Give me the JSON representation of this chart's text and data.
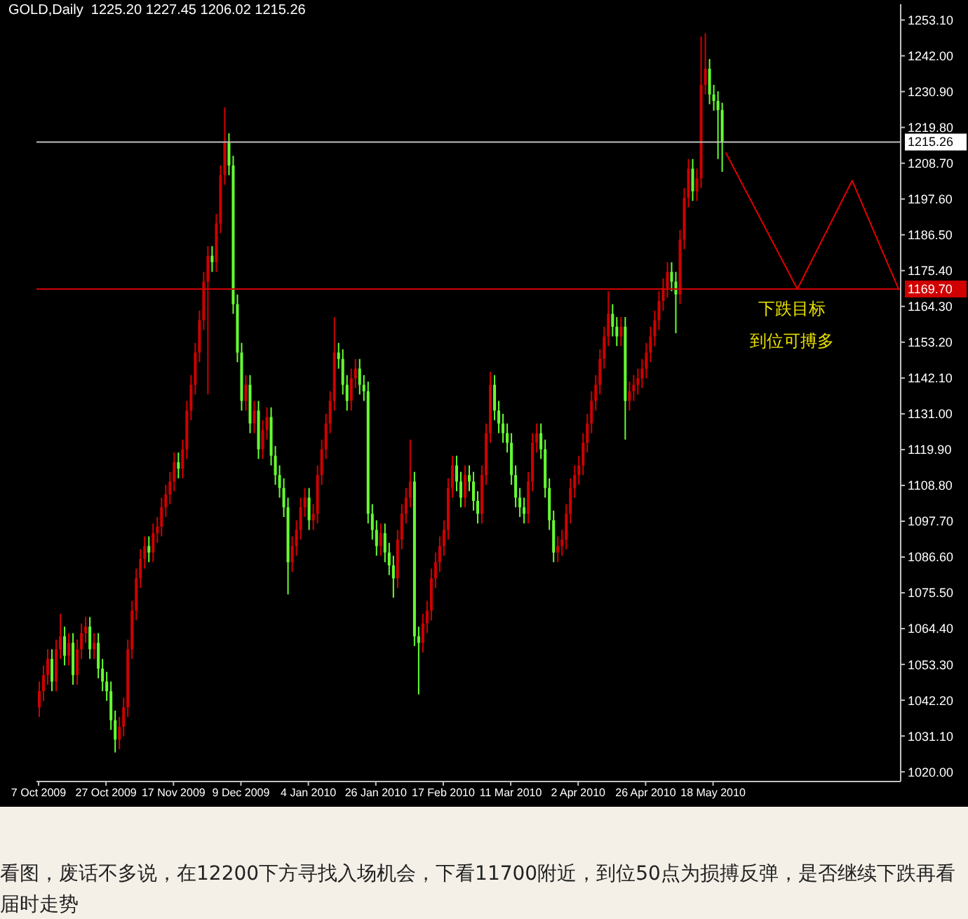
{
  "chart_data": {
    "type": "candlestick",
    "title": "GOLD,Daily  1225.20 1227.45 1206.02 1215.26",
    "categories": [
      "7 Oct 2009",
      null,
      null,
      null,
      null,
      null,
      null,
      null,
      null,
      null,
      null,
      null,
      null,
      null,
      null,
      null,
      "27 Oct 2009",
      null,
      null,
      null,
      null,
      null,
      null,
      null,
      null,
      null,
      null,
      null,
      null,
      null,
      null,
      null,
      "17 Nov 2009",
      null,
      null,
      null,
      null,
      null,
      null,
      null,
      null,
      null,
      null,
      null,
      null,
      null,
      null,
      null,
      "9 Dec 2009",
      null,
      null,
      null,
      null,
      null,
      null,
      null,
      null,
      null,
      null,
      null,
      null,
      null,
      null,
      null,
      "4 Jan 2010",
      null,
      null,
      null,
      null,
      null,
      null,
      null,
      null,
      null,
      null,
      null,
      null,
      null,
      null,
      null,
      "26 Jan 2010",
      null,
      null,
      null,
      null,
      null,
      null,
      null,
      null,
      null,
      null,
      null,
      null,
      null,
      null,
      null,
      "17 Feb 2010",
      null,
      null,
      null,
      null,
      null,
      null,
      null,
      null,
      null,
      null,
      null,
      null,
      null,
      null,
      null,
      "11 Mar 2010",
      null,
      null,
      null,
      null,
      null,
      null,
      null,
      null,
      null,
      null,
      null,
      null,
      null,
      null,
      null,
      "2 Apr 2010",
      null,
      null,
      null,
      null,
      null,
      null,
      null,
      null,
      null,
      null,
      null,
      null,
      null,
      null,
      null,
      "26 Apr 2010",
      null,
      null,
      null,
      null,
      null,
      null,
      null,
      null,
      null,
      null,
      null,
      null,
      null,
      null,
      null,
      "18 May 2010",
      null,
      null,
      null,
      null,
      null,
      null,
      null,
      null,
      null,
      null,
      null,
      null,
      null,
      null,
      null,
      null,
      null,
      null,
      null,
      null,
      null,
      null,
      null,
      null,
      null,
      null,
      null,
      null,
      null,
      null,
      null,
      null,
      null,
      null,
      null,
      null,
      null,
      null,
      null,
      null,
      null,
      null,
      null,
      null
    ],
    "ylim": [
      1017,
      1258
    ],
    "yticks": [
      {
        "value": 1020,
        "label": "1020.00"
      },
      {
        "value": 1031.1,
        "label": "1031.10"
      },
      {
        "value": 1042.2,
        "label": "1042.20"
      },
      {
        "value": 1053.3,
        "label": "1053.30"
      },
      {
        "value": 1064.4,
        "label": "1064.40"
      },
      {
        "value": 1075.5,
        "label": "1075.50"
      },
      {
        "value": 1086.6,
        "label": "1086.60"
      },
      {
        "value": 1097.7,
        "label": "1097.70"
      },
      {
        "value": 1108.8,
        "label": "1108.80"
      },
      {
        "value": 1119.9,
        "label": "1119.90"
      },
      {
        "value": 1131,
        "label": "1131.00"
      },
      {
        "value": 1142.1,
        "label": "1142.10"
      },
      {
        "value": 1153.2,
        "label": "1153.20"
      },
      {
        "value": 1164.3,
        "label": "1164.30"
      },
      {
        "value": 1175.4,
        "label": "1175.40"
      },
      {
        "value": 1186.5,
        "label": "1186.50"
      },
      {
        "value": 1197.6,
        "label": "1197.60"
      },
      {
        "value": 1208.7,
        "label": "1208.70"
      },
      {
        "value": 1219.8,
        "label": "1219.80"
      },
      {
        "value": 1230.9,
        "label": "1230.90"
      },
      {
        "value": 1242,
        "label": "1242.00"
      },
      {
        "value": 1253.1,
        "label": "1253.10"
      }
    ],
    "series": [
      {
        "ohlc": [
          [
            1040,
            1048,
            1037,
            1045
          ],
          [
            1045,
            1053,
            1042,
            1050
          ],
          [
            1050,
            1058,
            1047,
            1055
          ],
          [
            1055,
            1058,
            1045,
            1048
          ],
          [
            1048,
            1061,
            1045,
            1058
          ],
          [
            1058,
            1069,
            1055,
            1062
          ],
          [
            1062,
            1065,
            1053,
            1056
          ],
          [
            1056,
            1063,
            1053,
            1060
          ],
          [
            1060,
            1063,
            1047,
            1050
          ],
          [
            1050,
            1061,
            1047,
            1058
          ],
          [
            1058,
            1066,
            1055,
            1063
          ],
          [
            1063,
            1068,
            1060,
            1065
          ],
          [
            1065,
            1068,
            1055,
            1058
          ],
          [
            1058,
            1063,
            1055,
            1060
          ],
          [
            1060,
            1063,
            1049,
            1052
          ],
          [
            1052,
            1055,
            1045,
            1048
          ],
          [
            1048,
            1051,
            1042,
            1045
          ],
          [
            1045,
            1048,
            1033,
            1036
          ],
          [
            1036,
            1039,
            1026,
            1030
          ],
          [
            1030,
            1037,
            1027,
            1034
          ],
          [
            1034,
            1043,
            1031,
            1040
          ],
          [
            1040,
            1061,
            1037,
            1058
          ],
          [
            1058,
            1073,
            1055,
            1070
          ],
          [
            1070,
            1083,
            1067,
            1080
          ],
          [
            1080,
            1089,
            1077,
            1086
          ],
          [
            1086,
            1093,
            1083,
            1090
          ],
          [
            1090,
            1093,
            1085,
            1088
          ],
          [
            1088,
            1097,
            1085,
            1094
          ],
          [
            1094,
            1099,
            1091,
            1096
          ],
          [
            1096,
            1105,
            1093,
            1102
          ],
          [
            1102,
            1109,
            1099,
            1106
          ],
          [
            1106,
            1113,
            1103,
            1110
          ],
          [
            1110,
            1119,
            1107,
            1116
          ],
          [
            1116,
            1119,
            1111,
            1114
          ],
          [
            1114,
            1123,
            1111,
            1120
          ],
          [
            1120,
            1135,
            1117,
            1132
          ],
          [
            1132,
            1143,
            1129,
            1140
          ],
          [
            1140,
            1153,
            1137,
            1150
          ],
          [
            1150,
            1163,
            1147,
            1160
          ],
          [
            1160,
            1175,
            1157,
            1172
          ],
          [
            1172,
            1183,
            1137,
            1180
          ],
          [
            1180,
            1183,
            1175,
            1178
          ],
          [
            1178,
            1193,
            1175,
            1190
          ],
          [
            1190,
            1208,
            1187,
            1205
          ],
          [
            1205,
            1226,
            1202,
            1215
          ],
          [
            1215,
            1218,
            1205,
            1208
          ],
          [
            1208,
            1211,
            1162,
            1165
          ],
          [
            1165,
            1168,
            1147,
            1150
          ],
          [
            1150,
            1153,
            1132,
            1135
          ],
          [
            1135,
            1143,
            1132,
            1140
          ],
          [
            1140,
            1143,
            1125,
            1128
          ],
          [
            1128,
            1135,
            1125,
            1132
          ],
          [
            1132,
            1135,
            1117,
            1120
          ],
          [
            1120,
            1129,
            1117,
            1126
          ],
          [
            1126,
            1133,
            1123,
            1130
          ],
          [
            1130,
            1133,
            1115,
            1118
          ],
          [
            1118,
            1121,
            1109,
            1112
          ],
          [
            1112,
            1115,
            1105,
            1108
          ],
          [
            1108,
            1111,
            1099,
            1102
          ],
          [
            1102,
            1105,
            1075,
            1085
          ],
          [
            1085,
            1093,
            1082,
            1090
          ],
          [
            1090,
            1098,
            1087,
            1095
          ],
          [
            1095,
            1105,
            1092,
            1102
          ],
          [
            1102,
            1108,
            1099,
            1105
          ],
          [
            1105,
            1108,
            1095,
            1098
          ],
          [
            1098,
            1103,
            1095,
            1100
          ],
          [
            1100,
            1115,
            1097,
            1112
          ],
          [
            1112,
            1123,
            1109,
            1120
          ],
          [
            1120,
            1131,
            1117,
            1128
          ],
          [
            1128,
            1138,
            1125,
            1135
          ],
          [
            1135,
            1161,
            1132,
            1150
          ],
          [
            1150,
            1153,
            1145,
            1148
          ],
          [
            1148,
            1151,
            1137,
            1140
          ],
          [
            1140,
            1143,
            1132,
            1135
          ],
          [
            1135,
            1145,
            1132,
            1142
          ],
          [
            1142,
            1148,
            1139,
            1145
          ],
          [
            1145,
            1148,
            1137,
            1140
          ],
          [
            1140,
            1143,
            1135,
            1138
          ],
          [
            1138,
            1141,
            1097,
            1100
          ],
          [
            1100,
            1103,
            1092,
            1095
          ],
          [
            1095,
            1098,
            1087,
            1090
          ],
          [
            1090,
            1097,
            1087,
            1094
          ],
          [
            1094,
            1097,
            1085,
            1088
          ],
          [
            1088,
            1091,
            1081,
            1084
          ],
          [
            1084,
            1087,
            1074,
            1080
          ],
          [
            1080,
            1095,
            1077,
            1092
          ],
          [
            1092,
            1103,
            1089,
            1100
          ],
          [
            1100,
            1108,
            1097,
            1105
          ],
          [
            1105,
            1123,
            1102,
            1110
          ],
          [
            1110,
            1113,
            1059,
            1062
          ],
          [
            1062,
            1065,
            1044,
            1060
          ],
          [
            1060,
            1069,
            1057,
            1066
          ],
          [
            1066,
            1073,
            1063,
            1070
          ],
          [
            1070,
            1083,
            1067,
            1080
          ],
          [
            1080,
            1088,
            1077,
            1085
          ],
          [
            1085,
            1093,
            1082,
            1090
          ],
          [
            1090,
            1098,
            1087,
            1095
          ],
          [
            1095,
            1111,
            1092,
            1108
          ],
          [
            1108,
            1118,
            1105,
            1115
          ],
          [
            1115,
            1118,
            1107,
            1110
          ],
          [
            1110,
            1113,
            1102,
            1105
          ],
          [
            1105,
            1115,
            1102,
            1112
          ],
          [
            1112,
            1115,
            1107,
            1110
          ],
          [
            1110,
            1113,
            1101,
            1104
          ],
          [
            1104,
            1107,
            1097,
            1100
          ],
          [
            1100,
            1115,
            1097,
            1112
          ],
          [
            1112,
            1128,
            1109,
            1125
          ],
          [
            1125,
            1144,
            1122,
            1140
          ],
          [
            1140,
            1143,
            1129,
            1132
          ],
          [
            1132,
            1135,
            1125,
            1128
          ],
          [
            1128,
            1131,
            1122,
            1125
          ],
          [
            1125,
            1128,
            1119,
            1122
          ],
          [
            1122,
            1125,
            1109,
            1112
          ],
          [
            1112,
            1115,
            1102,
            1105
          ],
          [
            1105,
            1108,
            1099,
            1102
          ],
          [
            1102,
            1105,
            1097,
            1100
          ],
          [
            1100,
            1113,
            1097,
            1110
          ],
          [
            1110,
            1125,
            1107,
            1122
          ],
          [
            1122,
            1128,
            1119,
            1125
          ],
          [
            1125,
            1128,
            1117,
            1120
          ],
          [
            1120,
            1123,
            1105,
            1108
          ],
          [
            1108,
            1111,
            1095,
            1098
          ],
          [
            1098,
            1101,
            1085,
            1088
          ],
          [
            1088,
            1093,
            1085,
            1090
          ],
          [
            1090,
            1095,
            1087,
            1092
          ],
          [
            1092,
            1103,
            1089,
            1100
          ],
          [
            1100,
            1111,
            1097,
            1108
          ],
          [
            1108,
            1115,
            1105,
            1112
          ],
          [
            1112,
            1118,
            1109,
            1115
          ],
          [
            1115,
            1125,
            1112,
            1122
          ],
          [
            1122,
            1131,
            1119,
            1128
          ],
          [
            1128,
            1138,
            1125,
            1135
          ],
          [
            1135,
            1143,
            1132,
            1140
          ],
          [
            1140,
            1151,
            1137,
            1148
          ],
          [
            1148,
            1158,
            1145,
            1155
          ],
          [
            1155,
            1169,
            1152,
            1162
          ],
          [
            1162,
            1165,
            1155,
            1158
          ],
          [
            1158,
            1161,
            1152,
            1155
          ],
          [
            1155,
            1161,
            1152,
            1158
          ],
          [
            1158,
            1161,
            1123,
            1135
          ],
          [
            1135,
            1141,
            1132,
            1138
          ],
          [
            1138,
            1143,
            1135,
            1140
          ],
          [
            1140,
            1145,
            1137,
            1142
          ],
          [
            1142,
            1148,
            1139,
            1145
          ],
          [
            1145,
            1153,
            1142,
            1150
          ],
          [
            1150,
            1158,
            1147,
            1155
          ],
          [
            1155,
            1163,
            1152,
            1160
          ],
          [
            1160,
            1169,
            1157,
            1166
          ],
          [
            1166,
            1173,
            1163,
            1170
          ],
          [
            1170,
            1178,
            1167,
            1175
          ],
          [
            1175,
            1178,
            1169,
            1172
          ],
          [
            1172,
            1175,
            1156,
            1168
          ],
          [
            1168,
            1188,
            1165,
            1185
          ],
          [
            1185,
            1201,
            1182,
            1198
          ],
          [
            1198,
            1210,
            1195,
            1207
          ],
          [
            1207,
            1210,
            1197,
            1200
          ],
          [
            1200,
            1207,
            1197,
            1204
          ],
          [
            1204,
            1248,
            1201,
            1233
          ],
          [
            1233,
            1249,
            1230,
            1238
          ],
          [
            1238,
            1241,
            1227,
            1230
          ],
          [
            1230,
            1233,
            1225,
            1228
          ],
          [
            1228,
            1231,
            1210,
            1225.2
          ],
          [
            1225.2,
            1227.45,
            1206.02,
            1215.26
          ],
          null,
          null,
          null,
          null,
          null,
          null,
          null,
          null,
          null,
          null,
          null,
          null,
          null,
          null,
          null,
          null,
          null,
          null,
          null,
          null,
          null,
          null,
          null,
          null,
          null,
          null,
          null,
          null,
          null,
          null,
          null,
          null,
          null,
          null,
          null,
          null,
          null,
          null,
          null,
          null,
          null,
          null
        ],
        "colors": [
          "#d00000",
          "#d00000",
          "#d00000",
          "#66ff33",
          "#d00000",
          "#d00000",
          "#66ff33",
          "#d00000",
          "#66ff33",
          "#d00000",
          "#d00000",
          "#d00000",
          "#66ff33",
          "#d00000",
          "#66ff33",
          "#66ff33",
          "#66ff33",
          "#66ff33",
          "#66ff33",
          "#d00000",
          "#d00000",
          "#d00000",
          "#d00000",
          "#d00000",
          "#d00000",
          "#d00000",
          "#66ff33",
          "#d00000",
          "#d00000",
          "#d00000",
          "#d00000",
          "#d00000",
          "#d00000",
          "#66ff33",
          "#d00000",
          "#d00000",
          "#d00000",
          "#d00000",
          "#d00000",
          "#d00000",
          "#d00000",
          "#66ff33",
          "#d00000",
          "#d00000",
          "#d00000",
          "#66ff33",
          "#66ff33",
          "#66ff33",
          "#66ff33",
          "#d00000",
          "#66ff33",
          "#d00000",
          "#66ff33",
          "#d00000",
          "#d00000",
          "#66ff33",
          "#66ff33",
          "#66ff33",
          "#66ff33",
          "#66ff33",
          "#d00000",
          "#d00000",
          "#d00000",
          "#d00000",
          "#66ff33",
          "#d00000",
          "#d00000",
          "#d00000",
          "#d00000",
          "#d00000",
          "#d00000",
          "#66ff33",
          "#66ff33",
          "#66ff33",
          "#d00000",
          "#d00000",
          "#66ff33",
          "#66ff33",
          "#66ff33",
          "#66ff33",
          "#66ff33",
          "#d00000",
          "#66ff33",
          "#66ff33",
          "#66ff33",
          "#d00000",
          "#d00000",
          "#d00000",
          "#d00000",
          "#66ff33",
          "#66ff33",
          "#d00000",
          "#d00000",
          "#d00000",
          "#d00000",
          "#d00000",
          "#d00000",
          "#d00000",
          "#d00000",
          "#66ff33",
          "#66ff33",
          "#d00000",
          "#66ff33",
          "#66ff33",
          "#66ff33",
          "#d00000",
          "#d00000",
          "#d00000",
          "#66ff33",
          "#66ff33",
          "#66ff33",
          "#66ff33",
          "#66ff33",
          "#66ff33",
          "#66ff33",
          "#66ff33",
          "#d00000",
          "#d00000",
          "#d00000",
          "#66ff33",
          "#66ff33",
          "#66ff33",
          "#66ff33",
          "#d00000",
          "#d00000",
          "#d00000",
          "#d00000",
          "#d00000",
          "#d00000",
          "#d00000",
          "#d00000",
          "#d00000",
          "#d00000",
          "#d00000",
          "#d00000",
          "#d00000",
          "#66ff33",
          "#66ff33",
          "#d00000",
          "#66ff33",
          "#d00000",
          "#d00000",
          "#d00000",
          "#d00000",
          "#d00000",
          "#d00000",
          "#d00000",
          "#d00000",
          "#d00000",
          "#d00000",
          "#66ff33",
          "#66ff33",
          "#d00000",
          "#d00000",
          "#d00000",
          "#66ff33",
          "#d00000",
          "#d00000",
          "#d00000",
          "#66ff33",
          "#66ff33",
          "#66ff33",
          "#66ff33",
          null,
          null,
          null,
          null,
          null,
          null,
          null,
          null,
          null,
          null,
          null,
          null,
          null,
          null,
          null,
          null,
          null,
          null,
          null,
          null,
          null,
          null,
          null,
          null,
          null,
          null,
          null,
          null,
          null,
          null,
          null,
          null,
          null,
          null,
          null,
          null,
          null,
          null,
          null,
          null,
          null,
          null
        ]
      },
      {
        "type": "line",
        "color": "#e00000",
        "values": [
          null,
          null,
          null,
          null,
          null,
          null,
          null,
          null,
          null,
          null,
          null,
          null,
          null,
          null,
          null,
          null,
          null,
          null,
          null,
          null,
          null,
          null,
          null,
          null,
          null,
          null,
          null,
          null,
          null,
          null,
          null,
          null,
          null,
          null,
          null,
          null,
          null,
          null,
          null,
          null,
          null,
          null,
          null,
          null,
          null,
          null,
          null,
          null,
          null,
          null,
          null,
          null,
          null,
          null,
          null,
          null,
          null,
          null,
          null,
          null,
          null,
          null,
          null,
          null,
          null,
          null,
          null,
          null,
          null,
          null,
          null,
          null,
          null,
          null,
          null,
          null,
          null,
          null,
          null,
          null,
          null,
          null,
          null,
          null,
          null,
          null,
          null,
          null,
          null,
          null,
          null,
          null,
          null,
          null,
          null,
          null,
          null,
          null,
          null,
          null,
          null,
          null,
          null,
          null,
          null,
          null,
          null,
          null,
          null,
          null,
          null,
          null,
          null,
          null,
          null,
          null,
          null,
          null,
          null,
          null,
          null,
          null,
          null,
          null,
          null,
          null,
          null,
          null,
          null,
          null,
          null,
          null,
          null,
          null,
          null,
          null,
          null,
          null,
          null,
          null,
          null,
          null,
          null,
          null,
          null,
          null,
          null,
          null,
          null,
          null,
          null,
          null,
          null,
          null,
          null,
          null,
          null,
          null,
          null,
          null,
          null,
          null,
          null,
          1212,
          null,
          null,
          null,
          null,
          null,
          null,
          null,
          null,
          null,
          null,
          null,
          null,
          null,
          null,
          null,
          null,
          1169.7,
          null,
          null,
          null,
          null,
          null,
          null,
          null,
          null,
          null,
          null,
          null,
          null,
          1203.3,
          null,
          null,
          null,
          null,
          null,
          null,
          null,
          null,
          null,
          null,
          1169.7
        ]
      }
    ],
    "ref_lines": [
      {
        "axis": "y",
        "value": 1215.26,
        "label": "1215.26",
        "color": "#c0c0c0"
      },
      {
        "axis": "y",
        "value": 1169.7,
        "label": "1169.70",
        "color": "#d00000"
      }
    ],
    "annotations": [
      "下跌目标",
      "到位可搏多",
      "看图，废话不多说，在12200下方寻找入场机会，下看11700附近，到位50点为损搏反弹，是否继续下跌再看届时走势"
    ]
  }
}
